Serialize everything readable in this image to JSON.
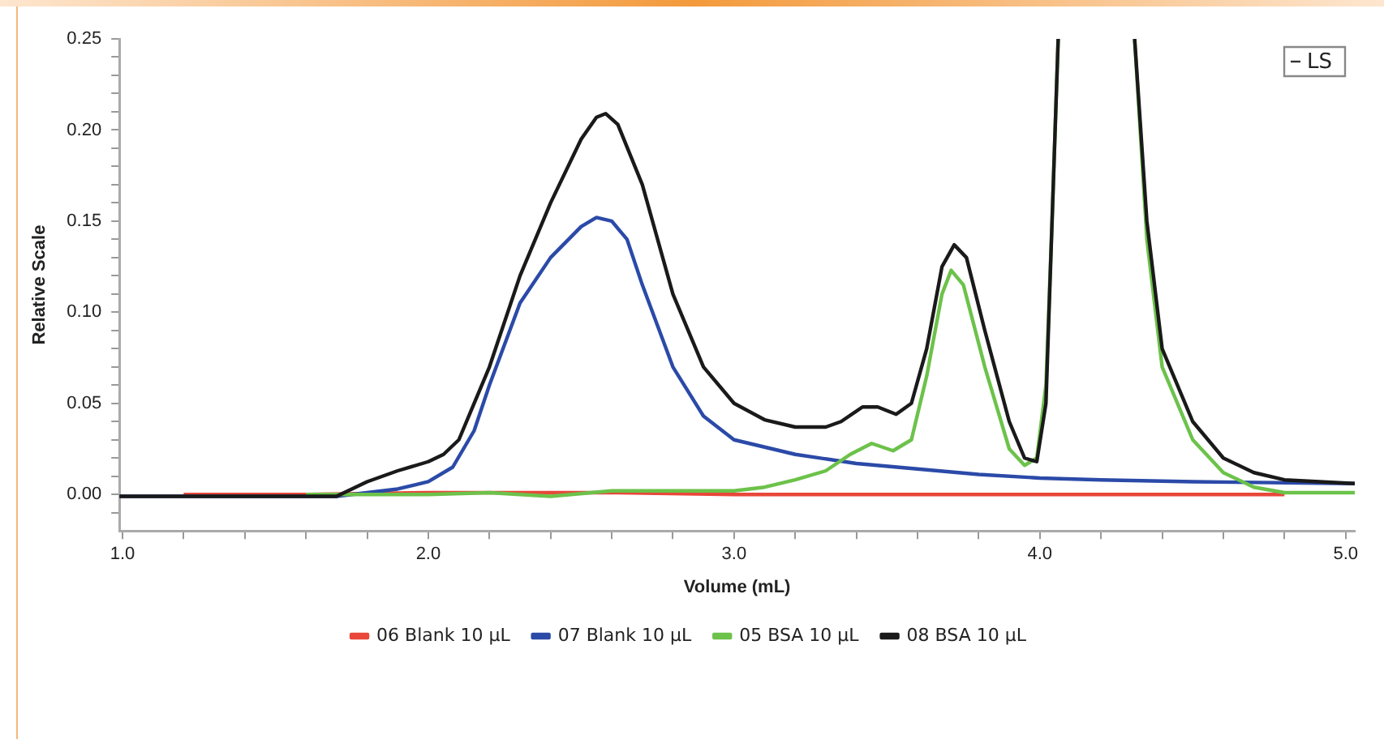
{
  "chart_data": {
    "type": "line",
    "xlabel": "Volume (mL)",
    "ylabel": "Relative Scale",
    "annotations": [
      "LS"
    ],
    "legend": "bottom",
    "grid": false,
    "marker": "none",
    "line_style": "solid",
    "xlim": [
      0.99,
      5.03
    ],
    "ylim": [
      -0.02,
      0.25
    ],
    "xticks": [
      {
        "value": 1,
        "label": "1.0"
      },
      {
        "value": 1.2,
        "label": null
      },
      {
        "value": 1.4,
        "label": null
      },
      {
        "value": 1.6,
        "label": null
      },
      {
        "value": 1.8,
        "label": null
      },
      {
        "value": 2,
        "label": "2.0"
      },
      {
        "value": 2.2,
        "label": null
      },
      {
        "value": 2.4,
        "label": null
      },
      {
        "value": 2.6,
        "label": null
      },
      {
        "value": 2.8,
        "label": null
      },
      {
        "value": 3,
        "label": "3.0"
      },
      {
        "value": 3.2,
        "label": null
      },
      {
        "value": 3.4,
        "label": null
      },
      {
        "value": 3.6,
        "label": null
      },
      {
        "value": 3.8,
        "label": null
      },
      {
        "value": 4,
        "label": "4.0"
      },
      {
        "value": 4.2,
        "label": null
      },
      {
        "value": 4.4,
        "label": null
      },
      {
        "value": 4.6,
        "label": null
      },
      {
        "value": 4.8,
        "label": null
      },
      {
        "value": 5,
        "label": "5.0"
      }
    ],
    "yticks": [
      {
        "value": -0.01,
        "label": null
      },
      {
        "value": 0,
        "label": "0.00"
      },
      {
        "value": 0.01,
        "label": null
      },
      {
        "value": 0.02,
        "label": null
      },
      {
        "value": 0.03,
        "label": null
      },
      {
        "value": 0.04,
        "label": null
      },
      {
        "value": 0.05,
        "label": "0.05"
      },
      {
        "value": 0.06,
        "label": null
      },
      {
        "value": 0.07,
        "label": null
      },
      {
        "value": 0.08,
        "label": null
      },
      {
        "value": 0.09,
        "label": null
      },
      {
        "value": 0.1,
        "label": "0.10"
      },
      {
        "value": 0.11,
        "label": null
      },
      {
        "value": 0.12,
        "label": null
      },
      {
        "value": 0.13,
        "label": null
      },
      {
        "value": 0.14,
        "label": null
      },
      {
        "value": 0.15,
        "label": "0.15"
      },
      {
        "value": 0.16,
        "label": null
      },
      {
        "value": 0.17,
        "label": null
      },
      {
        "value": 0.18,
        "label": null
      },
      {
        "value": 0.19,
        "label": null
      },
      {
        "value": 0.2,
        "label": "0.20"
      },
      {
        "value": 0.21,
        "label": null
      },
      {
        "value": 0.22,
        "label": null
      },
      {
        "value": 0.23,
        "label": null
      },
      {
        "value": 0.24,
        "label": null
      },
      {
        "value": 0.25,
        "label": "0.25"
      }
    ],
    "series": [
      {
        "name": "06 Blank 10 µL",
        "color": "#e8473a",
        "x": [
          1.2,
          1.6,
          2.0,
          2.3,
          2.6,
          3.0,
          3.5,
          4.0,
          4.5,
          4.8
        ],
        "values": [
          0,
          0,
          0.001,
          0.001,
          0.001,
          0,
          0,
          0,
          0,
          0
        ]
      },
      {
        "name": "07 Blank 10 µL",
        "color": "#2b4aa8",
        "x": [
          0.99,
          1.7,
          1.8,
          1.9,
          2.0,
          2.08,
          2.15,
          2.2,
          2.3,
          2.4,
          2.5,
          2.55,
          2.6,
          2.65,
          2.7,
          2.8,
          2.9,
          3.0,
          3.2,
          3.4,
          3.6,
          3.8,
          4.0,
          4.2,
          4.5,
          5.03
        ],
        "values": [
          -0.001,
          -0.001,
          0.001,
          0.003,
          0.007,
          0.015,
          0.035,
          0.06,
          0.105,
          0.13,
          0.147,
          0.152,
          0.15,
          0.14,
          0.115,
          0.07,
          0.043,
          0.03,
          0.022,
          0.017,
          0.014,
          0.011,
          0.009,
          0.008,
          0.007,
          0.006
        ]
      },
      {
        "name": "05 BSA 10 µL",
        "color": "#6cc24a",
        "x": [
          1.6,
          2.0,
          2.2,
          2.4,
          2.6,
          2.8,
          3.0,
          3.1,
          3.2,
          3.3,
          3.38,
          3.45,
          3.52,
          3.58,
          3.63,
          3.68,
          3.71,
          3.75,
          3.82,
          3.9,
          3.95,
          3.99,
          4.02,
          4.04,
          4.06,
          4.18,
          4.31,
          4.35,
          4.4,
          4.5,
          4.6,
          4.7,
          4.8,
          5.03
        ],
        "values": [
          0,
          0,
          0.001,
          -0.001,
          0.002,
          0.002,
          0.002,
          0.004,
          0.008,
          0.013,
          0.022,
          0.028,
          0.024,
          0.03,
          0.065,
          0.11,
          0.123,
          0.115,
          0.07,
          0.025,
          0.016,
          0.02,
          0.06,
          0.15,
          0.25,
          null,
          0.25,
          0.14,
          0.07,
          0.03,
          0.012,
          0.004,
          0.001,
          0.001
        ]
      },
      {
        "name": "08 BSA 10 µL",
        "color": "#1a1a1a",
        "x": [
          0.99,
          1.7,
          1.8,
          1.9,
          2.0,
          2.05,
          2.1,
          2.2,
          2.3,
          2.4,
          2.5,
          2.55,
          2.58,
          2.62,
          2.7,
          2.8,
          2.9,
          3.0,
          3.1,
          3.2,
          3.3,
          3.35,
          3.42,
          3.47,
          3.53,
          3.58,
          3.63,
          3.68,
          3.72,
          3.76,
          3.82,
          3.9,
          3.95,
          3.99,
          4.02,
          4.04,
          4.06,
          4.18,
          4.31,
          4.35,
          4.4,
          4.5,
          4.6,
          4.7,
          4.8,
          5.03
        ],
        "values": [
          -0.001,
          -0.001,
          0.007,
          0.013,
          0.018,
          0.022,
          0.03,
          0.07,
          0.12,
          0.16,
          0.195,
          0.207,
          0.209,
          0.203,
          0.17,
          0.11,
          0.07,
          0.05,
          0.041,
          0.037,
          0.037,
          0.04,
          0.048,
          0.048,
          0.044,
          0.05,
          0.08,
          0.125,
          0.137,
          0.13,
          0.09,
          0.04,
          0.02,
          0.018,
          0.05,
          0.15,
          0.25,
          null,
          0.25,
          0.15,
          0.08,
          0.04,
          0.02,
          0.012,
          0.008,
          0.006
        ]
      }
    ]
  }
}
